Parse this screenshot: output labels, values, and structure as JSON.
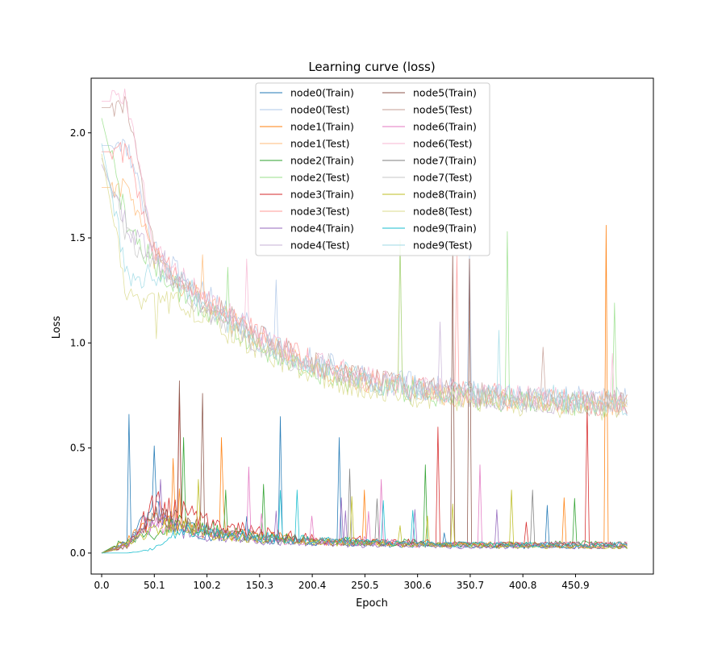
{
  "chart_data": {
    "type": "line",
    "title": "Learning curve (loss)",
    "xlabel": "Epoch",
    "ylabel": "Loss",
    "xlim": [
      -10,
      525
    ],
    "ylim": [
      -0.1,
      2.26
    ],
    "xticks": [
      0.0,
      50.1,
      100.2,
      150.3,
      200.4,
      250.5,
      300.6,
      350.7,
      400.8,
      450.9
    ],
    "xtick_labels": [
      "0.0",
      "50.1",
      "100.2",
      "150.3",
      "200.4",
      "250.5",
      "300.6",
      "350.7",
      "400.8",
      "450.9"
    ],
    "yticks": [
      0.0,
      0.5,
      1.0,
      1.5,
      2.0
    ],
    "ytick_labels": [
      "0.0",
      "0.5",
      "1.0",
      "1.5",
      "2.0"
    ],
    "grid": false,
    "legend": {
      "placement": "top-center",
      "columns": 2
    },
    "x": [
      0,
      25,
      50,
      75,
      100,
      125,
      150,
      175,
      200,
      225,
      250,
      275,
      300,
      325,
      350,
      375,
      400,
      425,
      450,
      475,
      500
    ],
    "series": [
      {
        "name": "node0(Train)",
        "color": "#1f77b4",
        "kind": "train",
        "values": [
          0.0,
          0.05,
          0.2,
          0.12,
          0.09,
          0.08,
          0.07,
          0.06,
          0.05,
          0.05,
          0.05,
          0.04,
          0.04,
          0.04,
          0.03,
          0.03,
          0.03,
          0.03,
          0.03,
          0.03,
          0.03
        ],
        "spikes": [
          [
            26,
            0.66
          ],
          [
            49,
            0.51
          ],
          [
            170,
            0.65
          ],
          [
            225,
            0.55
          ]
        ]
      },
      {
        "name": "node0(Test)",
        "color": "#aec7e8",
        "kind": "test",
        "values": [
          1.94,
          1.94,
          1.45,
          1.32,
          1.22,
          1.14,
          1.05,
          0.98,
          0.92,
          0.88,
          0.84,
          0.82,
          0.8,
          0.78,
          0.77,
          0.76,
          0.75,
          0.74,
          0.74,
          0.73,
          0.73
        ],
        "spikes": [
          [
            165,
            1.3
          ],
          [
            350,
            1.42
          ]
        ]
      },
      {
        "name": "node1(Train)",
        "color": "#ff7f0e",
        "kind": "train",
        "values": [
          0.0,
          0.06,
          0.16,
          0.14,
          0.1,
          0.09,
          0.08,
          0.07,
          0.06,
          0.05,
          0.05,
          0.05,
          0.04,
          0.04,
          0.04,
          0.04,
          0.04,
          0.04,
          0.03,
          0.03,
          0.03
        ],
        "spikes": [
          [
            67,
            0.45
          ],
          [
            113,
            0.55
          ],
          [
            250,
            0.3
          ],
          [
            480,
            1.56
          ]
        ]
      },
      {
        "name": "node1(Test)",
        "color": "#ffbb78",
        "kind": "test",
        "values": [
          1.74,
          1.74,
          1.4,
          1.28,
          1.18,
          1.1,
          1.02,
          0.95,
          0.9,
          0.86,
          0.82,
          0.8,
          0.78,
          0.76,
          0.75,
          0.74,
          0.73,
          0.72,
          0.71,
          0.7,
          0.7
        ],
        "spikes": [
          [
            95,
            1.42
          ],
          [
            283,
            1.48
          ]
        ]
      },
      {
        "name": "node2(Train)",
        "color": "#2ca02c",
        "kind": "train",
        "values": [
          0.0,
          0.07,
          0.09,
          0.14,
          0.12,
          0.1,
          0.08,
          0.07,
          0.06,
          0.06,
          0.05,
          0.05,
          0.05,
          0.04,
          0.04,
          0.04,
          0.04,
          0.04,
          0.05,
          0.04,
          0.03
        ],
        "spikes": [
          [
            77,
            0.55
          ],
          [
            118,
            0.3
          ],
          [
            308,
            0.42
          ],
          [
            450,
            0.26
          ]
        ]
      },
      {
        "name": "node2(Test)",
        "color": "#98df8a",
        "kind": "test",
        "values": [
          2.07,
          1.55,
          1.37,
          1.25,
          1.15,
          1.06,
          0.98,
          0.92,
          0.87,
          0.83,
          0.8,
          0.78,
          0.76,
          0.75,
          0.74,
          0.73,
          0.72,
          0.71,
          0.71,
          0.7,
          0.7
        ],
        "spikes": [
          [
            120,
            1.36
          ],
          [
            284,
            1.49
          ],
          [
            385,
            1.53
          ],
          [
            487,
            1.19
          ]
        ]
      },
      {
        "name": "node3(Train)",
        "color": "#d62728",
        "kind": "train",
        "values": [
          0.0,
          0.04,
          0.22,
          0.2,
          0.15,
          0.12,
          0.1,
          0.08,
          0.07,
          0.06,
          0.06,
          0.05,
          0.05,
          0.05,
          0.04,
          0.04,
          0.04,
          0.04,
          0.04,
          0.04,
          0.04
        ],
        "spikes": [
          [
            74,
            0.76
          ],
          [
            320,
            0.6
          ],
          [
            462,
            0.7
          ]
        ]
      },
      {
        "name": "node3(Test)",
        "color": "#ff9896",
        "kind": "test",
        "values": [
          1.91,
          1.91,
          1.43,
          1.3,
          1.2,
          1.12,
          1.04,
          0.97,
          0.91,
          0.87,
          0.83,
          0.81,
          0.79,
          0.77,
          0.76,
          0.75,
          0.74,
          0.73,
          0.72,
          0.71,
          0.71
        ],
        "spikes": [
          [
            58,
            1.42
          ],
          [
            337,
            1.42
          ]
        ]
      },
      {
        "name": "node4(Train)",
        "color": "#9467bd",
        "kind": "train",
        "values": [
          0.0,
          0.05,
          0.15,
          0.11,
          0.08,
          0.07,
          0.06,
          0.05,
          0.05,
          0.04,
          0.04,
          0.04,
          0.04,
          0.03,
          0.03,
          0.03,
          0.03,
          0.03,
          0.03,
          0.03,
          0.03
        ],
        "spikes": [
          [
            55,
            0.35
          ],
          [
            165,
            0.2
          ]
        ]
      },
      {
        "name": "node4(Test)",
        "color": "#c5b0d5",
        "kind": "test",
        "values": [
          1.85,
          1.55,
          1.4,
          1.27,
          1.17,
          1.08,
          1.0,
          0.94,
          0.89,
          0.85,
          0.82,
          0.8,
          0.78,
          0.76,
          0.75,
          0.74,
          0.73,
          0.72,
          0.72,
          0.71,
          0.71
        ],
        "spikes": [
          [
            60,
            1.44
          ],
          [
            322,
            1.1
          ]
        ]
      },
      {
        "name": "node5(Train)",
        "color": "#8c564b",
        "kind": "train",
        "values": [
          0.0,
          0.03,
          0.18,
          0.15,
          0.11,
          0.09,
          0.08,
          0.07,
          0.06,
          0.05,
          0.05,
          0.05,
          0.04,
          0.04,
          0.04,
          0.04,
          0.04,
          0.04,
          0.04,
          0.04,
          0.04
        ],
        "spikes": [
          [
            95,
            0.76
          ],
          [
            73,
            0.82
          ],
          [
            333,
            1.42
          ],
          [
            350,
            1.4
          ]
        ]
      },
      {
        "name": "node5(Test)",
        "color": "#c49c94",
        "kind": "test",
        "values": [
          2.12,
          2.12,
          1.42,
          1.3,
          1.2,
          1.11,
          1.03,
          0.96,
          0.9,
          0.86,
          0.83,
          0.81,
          0.79,
          0.77,
          0.76,
          0.75,
          0.74,
          0.73,
          0.72,
          0.72,
          0.72
        ],
        "spikes": [
          [
            420,
            0.98
          ]
        ]
      },
      {
        "name": "node6(Train)",
        "color": "#e377c2",
        "kind": "train",
        "values": [
          0.0,
          0.04,
          0.14,
          0.13,
          0.1,
          0.08,
          0.07,
          0.06,
          0.06,
          0.05,
          0.05,
          0.05,
          0.04,
          0.04,
          0.04,
          0.04,
          0.04,
          0.04,
          0.04,
          0.04,
          0.04
        ],
        "spikes": [
          [
            140,
            0.41
          ],
          [
            265,
            0.35
          ],
          [
            360,
            0.42
          ]
        ]
      },
      {
        "name": "node6(Test)",
        "color": "#f7b6d2",
        "kind": "test",
        "values": [
          2.15,
          2.15,
          1.44,
          1.31,
          1.21,
          1.12,
          1.04,
          0.97,
          0.91,
          0.87,
          0.84,
          0.81,
          0.79,
          0.78,
          0.76,
          0.75,
          0.74,
          0.73,
          0.73,
          0.72,
          0.72
        ],
        "spikes": [
          [
            138,
            1.4
          ],
          [
            485,
            0.95
          ]
        ]
      },
      {
        "name": "node7(Train)",
        "color": "#7f7f7f",
        "kind": "train",
        "values": [
          0.0,
          0.05,
          0.17,
          0.14,
          0.1,
          0.08,
          0.07,
          0.06,
          0.06,
          0.05,
          0.05,
          0.05,
          0.04,
          0.04,
          0.04,
          0.04,
          0.04,
          0.04,
          0.04,
          0.04,
          0.04
        ],
        "spikes": [
          [
            235,
            0.4
          ],
          [
            410,
            0.3
          ]
        ]
      },
      {
        "name": "node7(Test)",
        "color": "#c7c7c7",
        "kind": "test",
        "values": [
          1.88,
          1.5,
          1.38,
          1.26,
          1.16,
          1.07,
          0.99,
          0.93,
          0.88,
          0.84,
          0.81,
          0.79,
          0.77,
          0.76,
          0.75,
          0.74,
          0.73,
          0.72,
          0.71,
          0.71,
          0.7
        ],
        "spikes": [
          [
            215,
            0.95
          ]
        ]
      },
      {
        "name": "node8(Train)",
        "color": "#bcbd22",
        "kind": "train",
        "values": [
          0.0,
          0.04,
          0.13,
          0.12,
          0.09,
          0.08,
          0.07,
          0.06,
          0.05,
          0.05,
          0.05,
          0.04,
          0.04,
          0.04,
          0.04,
          0.03,
          0.03,
          0.03,
          0.03,
          0.03,
          0.03
        ],
        "spikes": [
          [
            92,
            0.35
          ],
          [
            390,
            0.3
          ]
        ]
      },
      {
        "name": "node8(Test)",
        "color": "#dbdb8d",
        "kind": "test",
        "values": [
          1.9,
          1.2,
          1.18,
          1.2,
          1.12,
          1.04,
          0.97,
          0.91,
          0.86,
          0.82,
          0.79,
          0.77,
          0.75,
          0.74,
          0.73,
          0.72,
          0.71,
          0.7,
          0.7,
          0.69,
          0.69
        ],
        "spikes": [
          [
            52,
            1.02
          ],
          [
            200,
            0.9
          ]
        ]
      },
      {
        "name": "node9(Train)",
        "color": "#17becf",
        "kind": "train",
        "values": [
          0.0,
          0.0,
          0.02,
          0.11,
          0.1,
          0.09,
          0.08,
          0.07,
          0.06,
          0.06,
          0.05,
          0.05,
          0.05,
          0.04,
          0.04,
          0.04,
          0.04,
          0.04,
          0.04,
          0.04,
          0.04
        ],
        "spikes": [
          [
            185,
            0.3
          ]
        ]
      },
      {
        "name": "node9(Test)",
        "color": "#9edae5",
        "kind": "test",
        "values": [
          1.95,
          1.3,
          1.32,
          1.3,
          1.18,
          1.09,
          1.01,
          0.95,
          0.9,
          0.86,
          0.83,
          0.8,
          0.78,
          0.77,
          0.76,
          0.75,
          0.74,
          0.73,
          0.72,
          0.72,
          0.71
        ],
        "spikes": [
          [
            378,
            1.06
          ],
          [
            430,
            0.8
          ]
        ]
      }
    ]
  }
}
